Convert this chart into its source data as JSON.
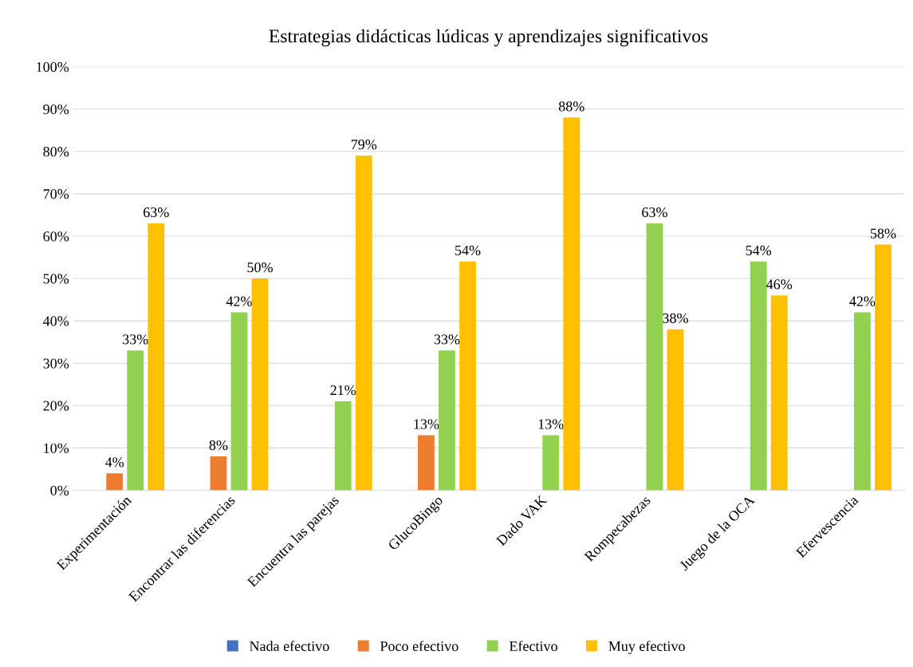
{
  "chart_data": {
    "type": "bar",
    "title": "Estrategias didácticas lúdicas y aprendizajes significativos",
    "categories": [
      "Experimentación",
      "Encontrar las diferencias",
      "Encuentra las parejas",
      "GlucoBingo",
      "Dado VAK",
      "Rompecabezas",
      "Juego de la OCA",
      "Efervescencia"
    ],
    "series": [
      {
        "name": "Nada efectivo",
        "color": "#4472c4",
        "values": [
          null,
          null,
          null,
          null,
          null,
          null,
          null,
          null
        ],
        "value_labels": [
          null,
          null,
          null,
          null,
          null,
          null,
          null,
          null
        ]
      },
      {
        "name": "Poco efectivo",
        "color": "#ed7d31",
        "values": [
          4,
          8,
          null,
          13,
          null,
          null,
          null,
          null
        ],
        "value_labels": [
          "4%",
          "8%",
          null,
          "13%",
          null,
          null,
          null,
          null
        ]
      },
      {
        "name": "Efectivo",
        "color": "#92d050",
        "values": [
          33,
          42,
          21,
          33,
          13,
          63,
          54,
          42
        ],
        "value_labels": [
          "33%",
          "42%",
          "21%",
          "33%",
          "13%",
          "63%",
          "54%",
          "42%"
        ]
      },
      {
        "name": "Muy efectivo",
        "color": "#ffc000",
        "values": [
          63,
          50,
          79,
          54,
          88,
          38,
          46,
          58
        ],
        "value_labels": [
          "63%",
          "50%",
          "79%",
          "54%",
          "88%",
          "38%",
          "46%",
          "58%"
        ]
      }
    ],
    "ylim": [
      0,
      100
    ],
    "yticks": [
      {
        "value": 0,
        "label": "0%"
      },
      {
        "value": 10,
        "label": "10%"
      },
      {
        "value": 20,
        "label": "20%"
      },
      {
        "value": 30,
        "label": "30%"
      },
      {
        "value": 40,
        "label": "40%"
      },
      {
        "value": 50,
        "label": "50%"
      },
      {
        "value": 60,
        "label": "60%"
      },
      {
        "value": 70,
        "label": "70%"
      },
      {
        "value": 80,
        "label": "80%"
      },
      {
        "value": 90,
        "label": "90%"
      },
      {
        "value": 100,
        "label": "100%"
      }
    ],
    "grid": "y",
    "legend": "bottom"
  }
}
